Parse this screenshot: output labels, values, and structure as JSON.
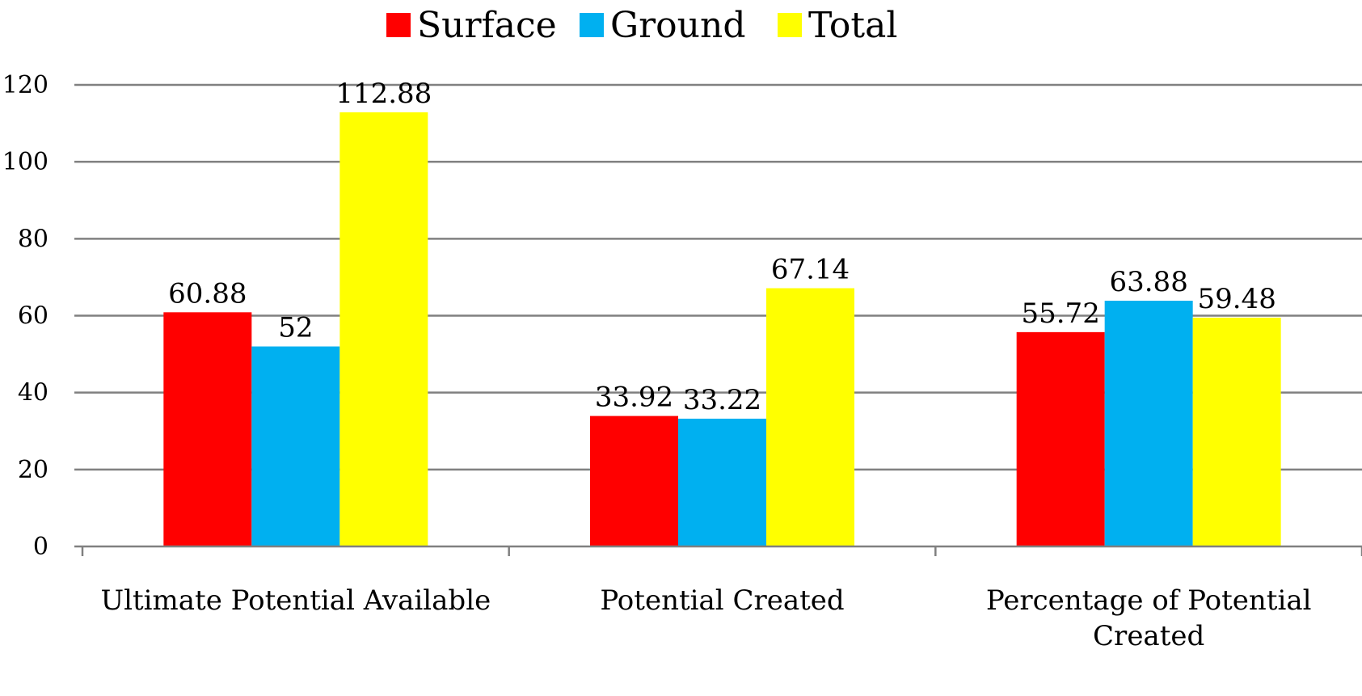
{
  "chart_data": {
    "type": "bar",
    "categories": [
      [
        "Ultimate Potential Available"
      ],
      [
        "Potential Created"
      ],
      [
        "Percentage of Potential",
        "Created"
      ]
    ],
    "series": [
      {
        "name": "Surface",
        "color": "#ff0000",
        "values": [
          60.88,
          33.92,
          55.72
        ],
        "labels": [
          "60.88",
          "33.92",
          "55.72"
        ]
      },
      {
        "name": "Ground",
        "color": "#00b0f0",
        "values": [
          52,
          33.22,
          63.88
        ],
        "labels": [
          "52",
          "33.22",
          "63.88"
        ]
      },
      {
        "name": "Total",
        "color": "#ffff00",
        "values": [
          112.88,
          67.14,
          59.48
        ],
        "labels": [
          "112.88",
          "67.14",
          "59.48"
        ]
      }
    ],
    "yticks": [
      "0",
      "20",
      "40",
      "60",
      "80",
      "100",
      "120"
    ],
    "ylim": [
      0,
      120
    ],
    "grid": true,
    "legend": "top-center",
    "title": "",
    "xlabel": "",
    "ylabel": ""
  }
}
